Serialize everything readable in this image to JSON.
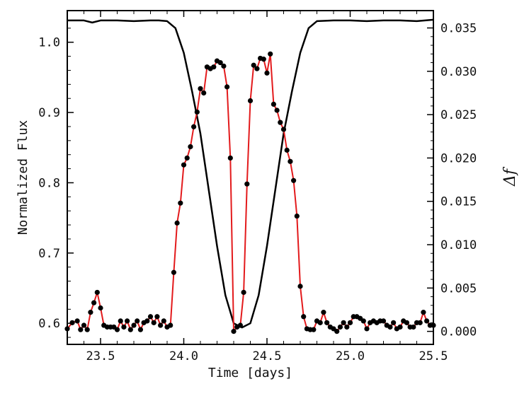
{
  "chart_data": {
    "type": "line",
    "title": "",
    "xlabel": "Time [days]",
    "ylabel_left": "Normalized Flux",
    "ylabel_right": "Δf",
    "xlim": [
      23.3,
      25.5
    ],
    "ylim_left": [
      0.57,
      1.045
    ],
    "ylim_right": [
      -0.0015,
      0.037
    ],
    "x_ticks": [
      23.5,
      24.0,
      24.5,
      25.0,
      25.5
    ],
    "x_tick_labels": [
      "23.5",
      "24.0",
      "24.5",
      "25.0",
      "25.5"
    ],
    "y_left_ticks": [
      0.6,
      0.7,
      0.8,
      0.9,
      1.0
    ],
    "y_left_tick_labels": [
      "0.6",
      "0.7",
      "0.8",
      "0.9",
      "1.0"
    ],
    "y_right_ticks": [
      0.0,
      0.005,
      0.01,
      0.015,
      0.02,
      0.025,
      0.03,
      0.035
    ],
    "y_right_tick_labels": [
      "0.000",
      "0.005",
      "0.010",
      "0.015",
      "0.020",
      "0.025",
      "0.030",
      "0.035"
    ],
    "grid": false,
    "legend": "none",
    "colors": {
      "flux_line": "#000000",
      "delta_line": "#e31a1c",
      "delta_points": "#000000"
    },
    "series": [
      {
        "axis": "left",
        "style": "line",
        "x": [
          23.3,
          23.4,
          23.45,
          23.5,
          23.6,
          23.7,
          23.8,
          23.85,
          23.9,
          23.95,
          24.0,
          24.05,
          24.1,
          24.15,
          24.2,
          24.25,
          24.3,
          24.35,
          24.4,
          24.45,
          24.5,
          24.55,
          24.6,
          24.65,
          24.7,
          24.75,
          24.8,
          24.9,
          25.0,
          25.1,
          25.2,
          25.3,
          25.4,
          25.5
        ],
        "values": [
          1.031,
          1.031,
          1.028,
          1.031,
          1.031,
          1.03,
          1.031,
          1.031,
          1.03,
          1.02,
          0.985,
          0.93,
          0.87,
          0.79,
          0.71,
          0.64,
          0.6,
          0.594,
          0.6,
          0.64,
          0.71,
          0.79,
          0.87,
          0.93,
          0.985,
          1.02,
          1.03,
          1.031,
          1.031,
          1.03,
          1.031,
          1.031,
          1.03,
          1.032
        ]
      },
      {
        "axis": "right",
        "style": "line-markers",
        "x": [
          23.3,
          23.33,
          23.36,
          23.38,
          23.4,
          23.42,
          23.44,
          23.46,
          23.48,
          23.5,
          23.52,
          23.54,
          23.56,
          23.58,
          23.6,
          23.62,
          23.64,
          23.66,
          23.68,
          23.7,
          23.72,
          23.74,
          23.76,
          23.78,
          23.8,
          23.82,
          23.84,
          23.86,
          23.88,
          23.9,
          23.92,
          23.94,
          23.96,
          23.98,
          24.0,
          24.02,
          24.04,
          24.06,
          24.08,
          24.1,
          24.12,
          24.14,
          24.16,
          24.18,
          24.2,
          24.22,
          24.24,
          24.26,
          24.28,
          24.3,
          24.32,
          24.34,
          24.36,
          24.38,
          24.4,
          24.42,
          24.44,
          24.46,
          24.48,
          24.5,
          24.52,
          24.54,
          24.56,
          24.58,
          24.6,
          24.62,
          24.64,
          24.66,
          24.68,
          24.7,
          24.72,
          24.74,
          24.76,
          24.78,
          24.8,
          24.82,
          24.84,
          24.86,
          24.88,
          24.9,
          24.92,
          24.94,
          24.96,
          24.98,
          25.0,
          25.02,
          25.04,
          25.06,
          25.08,
          25.1,
          25.12,
          25.14,
          25.16,
          25.18,
          25.2,
          25.22,
          25.24,
          25.26,
          25.28,
          25.3,
          25.32,
          25.34,
          25.36,
          25.38,
          25.4,
          25.42,
          25.44,
          25.46,
          25.48,
          25.5
        ],
        "values": [
          0.0003,
          0.001,
          0.0012,
          0.0002,
          0.0007,
          0.0002,
          0.0022,
          0.0033,
          0.0045,
          0.0027,
          0.0007,
          0.0005,
          0.0005,
          0.0005,
          0.0002,
          0.0012,
          0.0005,
          0.0012,
          0.0002,
          0.0007,
          0.0012,
          0.0002,
          0.001,
          0.0012,
          0.0017,
          0.001,
          0.0017,
          0.0007,
          0.0012,
          0.0005,
          0.0007,
          0.0068,
          0.0125,
          0.0148,
          0.0192,
          0.02,
          0.0213,
          0.0236,
          0.0253,
          0.028,
          0.0275,
          0.0305,
          0.0303,
          0.0305,
          0.0312,
          0.031,
          0.0306,
          0.0282,
          0.02,
          0.0,
          0.0005,
          0.0007,
          0.0045,
          0.017,
          0.0266,
          0.0307,
          0.0303,
          0.0315,
          0.0314,
          0.0298,
          0.032,
          0.0262,
          0.0255,
          0.0241,
          0.0233,
          0.0209,
          0.0196,
          0.0174,
          0.0133,
          0.0052,
          0.0017,
          0.0003,
          0.0002,
          0.0002,
          0.0012,
          0.001,
          0.0022,
          0.001,
          0.0005,
          0.0003,
          0.0,
          0.0005,
          0.001,
          0.0005,
          0.001,
          0.0017,
          0.0017,
          0.0015,
          0.0012,
          0.0003,
          0.001,
          0.0012,
          0.001,
          0.0012,
          0.0012,
          0.0007,
          0.0005,
          0.001,
          0.0003,
          0.0005,
          0.0012,
          0.001,
          0.0005,
          0.0005,
          0.001,
          0.001,
          0.0022,
          0.0012,
          0.0007,
          0.0007
        ]
      }
    ]
  }
}
